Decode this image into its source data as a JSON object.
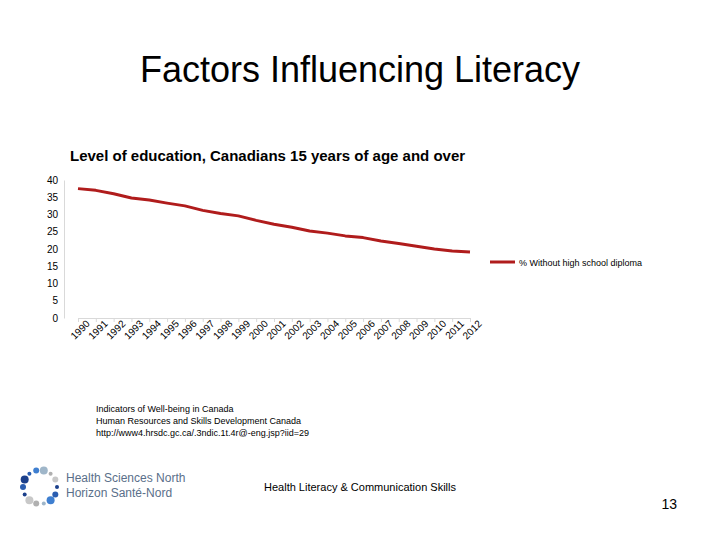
{
  "slide": {
    "title": "Factors Influencing Literacy",
    "source": [
      "Indicators of Well-being in Canada",
      "Human Resources and Skills Development Canada",
      "http://www4.hrsdc.gc.ca/.3ndic.1t.4r@-eng.jsp?iid=29"
    ],
    "footer": "Health Literacy & Communication Skills",
    "page_number": "13",
    "logo": [
      "Health Sciences North",
      "Horizon Santé-Nord"
    ]
  },
  "chart_data": {
    "type": "line",
    "title": "Level of education, Canadians 15 years of age and over",
    "categories": [
      "1990",
      "1991",
      "1992",
      "1993",
      "1994",
      "1995",
      "1996",
      "1997",
      "1998",
      "1999",
      "2000",
      "2001",
      "2002",
      "2003",
      "2004",
      "2005",
      "2006",
      "2007",
      "2008",
      "2009",
      "2010",
      "2011",
      "2012"
    ],
    "series": [
      {
        "name": "% Without high school diploma",
        "color": "#b01c1c",
        "values": [
          37.5,
          37.0,
          36.0,
          34.8,
          34.2,
          33.3,
          32.5,
          31.2,
          30.3,
          29.6,
          28.3,
          27.2,
          26.3,
          25.2,
          24.6,
          23.8,
          23.3,
          22.3,
          21.6,
          20.8,
          20.0,
          19.4,
          19.1
        ]
      }
    ],
    "ylim": [
      0,
      40
    ],
    "yticks": [
      0,
      5,
      10,
      15,
      20,
      25,
      30,
      35,
      40
    ],
    "grid": false,
    "legend": "right"
  }
}
